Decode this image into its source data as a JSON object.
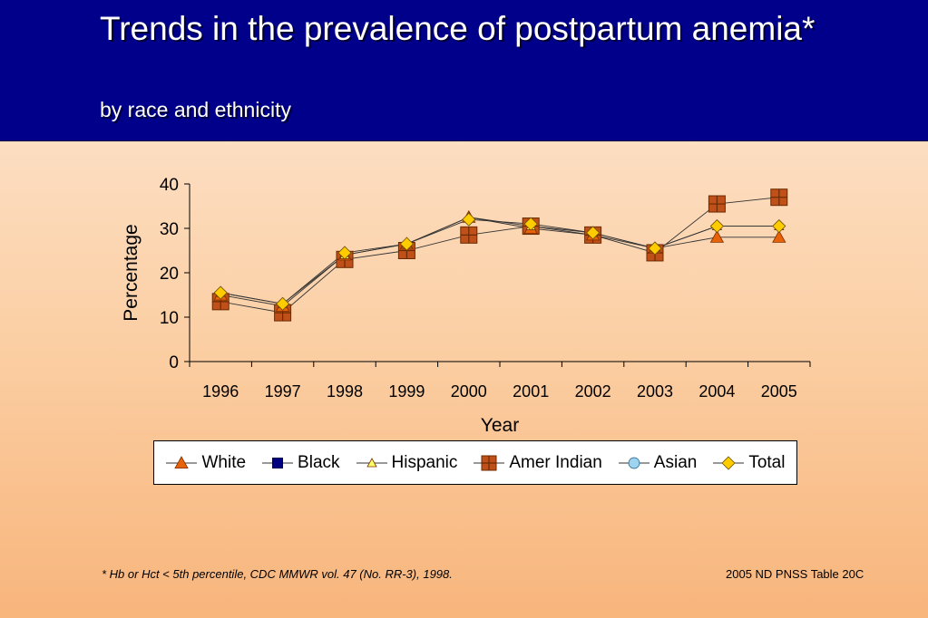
{
  "slide": {
    "title": "Trends in the prevalence of postpartum anemia*",
    "subtitle": "by race and ethnicity",
    "footnote": "*  Hb or Hct < 5th percentile, CDC MMWR vol. 47 (No. RR-3), 1998.",
    "source": "2005 ND PNSS Table 20C"
  },
  "chart_data": {
    "type": "line",
    "title": "",
    "xlabel": "Year",
    "ylabel": "Percentage",
    "ylim": [
      0,
      40
    ],
    "yticks": [
      0,
      10,
      20,
      30,
      40
    ],
    "categories": [
      "1996",
      "1997",
      "1998",
      "1999",
      "2000",
      "2001",
      "2002",
      "2003",
      "2004",
      "2005"
    ],
    "legend_position": "bottom",
    "grid": false,
    "series": [
      {
        "name": "White",
        "marker": "triangle",
        "color": "#e8620a",
        "values": [
          15.0,
          12.5,
          24.0,
          26.5,
          32.5,
          30.0,
          28.5,
          25.5,
          28.0,
          28.0
        ]
      },
      {
        "name": "Black",
        "marker": "square",
        "color": "#000080",
        "values": [
          null,
          null,
          null,
          null,
          null,
          null,
          null,
          null,
          null,
          null
        ]
      },
      {
        "name": "Hispanic",
        "marker": "triangle",
        "color": "#ffff66",
        "values": [
          15.5,
          13.0,
          24.0,
          26.5,
          32.5,
          30.5,
          29.0,
          25.5,
          30.5,
          30.5
        ]
      },
      {
        "name": "Amer Indian",
        "marker": "square-cross",
        "color": "#c0501a",
        "values": [
          13.5,
          11.0,
          23.0,
          25.0,
          28.5,
          30.5,
          28.5,
          24.5,
          35.5,
          37.0
        ]
      },
      {
        "name": "Asian",
        "marker": "circle",
        "color": "#9fd4f0",
        "values": [
          null,
          null,
          null,
          null,
          null,
          null,
          null,
          null,
          null,
          null
        ]
      },
      {
        "name": "Total",
        "marker": "diamond",
        "color": "#ffcc00",
        "values": [
          15.5,
          13.0,
          24.5,
          26.5,
          32.0,
          31.0,
          29.0,
          25.5,
          30.5,
          30.5
        ]
      }
    ]
  }
}
